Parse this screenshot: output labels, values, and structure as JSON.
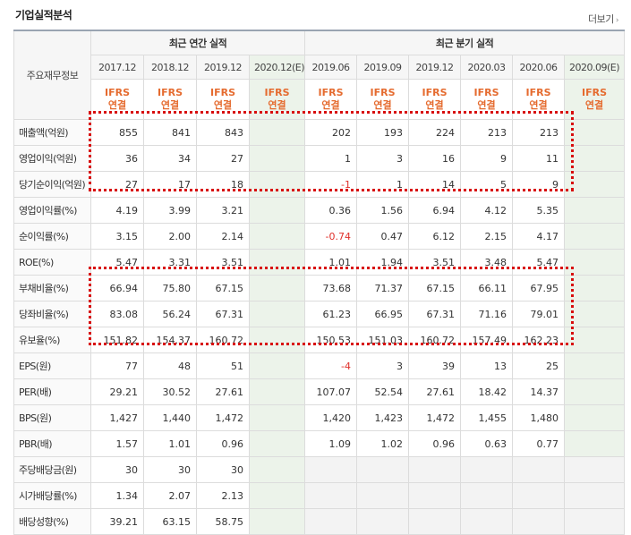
{
  "header": {
    "title": "기업실적분석",
    "more_label": "더보기",
    "more_arrow": "›"
  },
  "table": {
    "corner_label": "주요재무정보",
    "annual_group_label": "최근 연간 실적",
    "quarter_group_label": "최근 분기 실적",
    "annual_periods": [
      "2017.12",
      "2018.12",
      "2019.12",
      "2020.12(E)"
    ],
    "quarter_periods": [
      "2019.06",
      "2019.09",
      "2019.12",
      "2020.03",
      "2020.06",
      "2020.09(E)"
    ],
    "basis_label_top": "IFRS",
    "basis_label_bottom": "연결",
    "rows": [
      {
        "label": "매출액(억원)",
        "annual": [
          "855",
          "841",
          "843",
          ""
        ],
        "quarter": [
          "202",
          "193",
          "224",
          "213",
          "213",
          ""
        ]
      },
      {
        "label": "영업이익(억원)",
        "annual": [
          "36",
          "34",
          "27",
          ""
        ],
        "quarter": [
          "1",
          "3",
          "16",
          "9",
          "11",
          ""
        ]
      },
      {
        "label": "당기순이익(억원)",
        "annual": [
          "27",
          "17",
          "18",
          ""
        ],
        "quarter": [
          "-1",
          "1",
          "14",
          "5",
          "9",
          ""
        ]
      },
      {
        "label": "영업이익률(%)",
        "annual": [
          "4.19",
          "3.99",
          "3.21",
          ""
        ],
        "quarter": [
          "0.36",
          "1.56",
          "6.94",
          "4.12",
          "5.35",
          ""
        ]
      },
      {
        "label": "순이익률(%)",
        "annual": [
          "3.15",
          "2.00",
          "2.14",
          ""
        ],
        "quarter": [
          "-0.74",
          "0.47",
          "6.12",
          "2.15",
          "4.17",
          ""
        ]
      },
      {
        "label": "ROE(%)",
        "annual": [
          "5.47",
          "3.31",
          "3.51",
          ""
        ],
        "quarter": [
          "1.01",
          "1.94",
          "3.51",
          "3.48",
          "5.47",
          ""
        ]
      },
      {
        "label": "부채비율(%)",
        "annual": [
          "66.94",
          "75.80",
          "67.15",
          ""
        ],
        "quarter": [
          "73.68",
          "71.37",
          "67.15",
          "66.11",
          "67.95",
          ""
        ]
      },
      {
        "label": "당좌비율(%)",
        "annual": [
          "83.08",
          "56.24",
          "67.31",
          ""
        ],
        "quarter": [
          "61.23",
          "66.95",
          "67.31",
          "71.16",
          "79.01",
          ""
        ]
      },
      {
        "label": "유보율(%)",
        "annual": [
          "151.82",
          "154.37",
          "160.72",
          ""
        ],
        "quarter": [
          "150.53",
          "151.03",
          "160.72",
          "157.49",
          "162.23",
          ""
        ]
      },
      {
        "label": "EPS(원)",
        "annual": [
          "77",
          "48",
          "51",
          ""
        ],
        "quarter": [
          "-4",
          "3",
          "39",
          "13",
          "25",
          ""
        ]
      },
      {
        "label": "PER(배)",
        "annual": [
          "29.21",
          "30.52",
          "27.61",
          ""
        ],
        "quarter": [
          "107.07",
          "52.54",
          "27.61",
          "18.42",
          "14.37",
          ""
        ]
      },
      {
        "label": "BPS(원)",
        "annual": [
          "1,427",
          "1,440",
          "1,472",
          ""
        ],
        "quarter": [
          "1,420",
          "1,423",
          "1,472",
          "1,455",
          "1,480",
          ""
        ]
      },
      {
        "label": "PBR(배)",
        "annual": [
          "1.57",
          "1.01",
          "0.96",
          ""
        ],
        "quarter": [
          "1.09",
          "1.02",
          "0.96",
          "0.63",
          "0.77",
          ""
        ]
      },
      {
        "label": "주당배당금(원)",
        "annual": [
          "30",
          "30",
          "30",
          ""
        ],
        "quarter": null
      },
      {
        "label": "시가배당률(%)",
        "annual": [
          "1.34",
          "2.07",
          "2.13",
          ""
        ],
        "quarter": null
      },
      {
        "label": "배당성향(%)",
        "annual": [
          "39.21",
          "63.15",
          "58.75",
          ""
        ],
        "quarter": null
      }
    ]
  },
  "colors": {
    "estimate_bg": "#ecf3ea",
    "basis_text": "#e56b2f",
    "negative_text": "#e0302a",
    "highlight_box": "#d80d0d"
  }
}
